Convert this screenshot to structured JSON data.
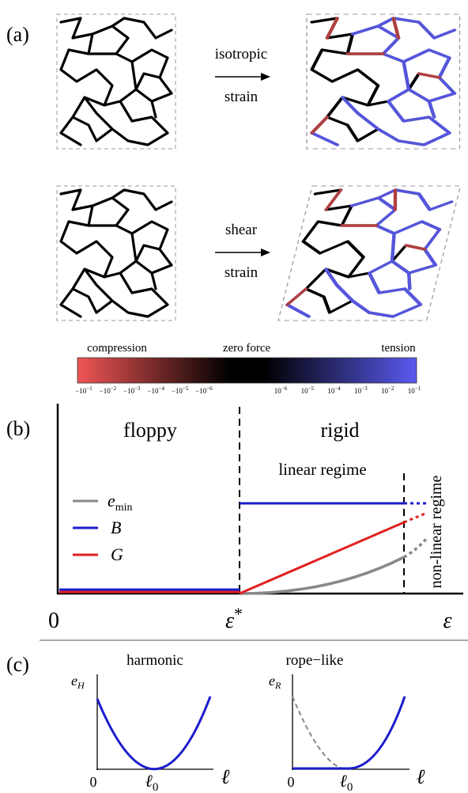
{
  "panel_a": {
    "label": "(a)",
    "row1_arrow": {
      "top": "isotropic",
      "bottom": "strain"
    },
    "row2_arrow": {
      "top": "shear",
      "bottom": "strain"
    },
    "colorbar": {
      "left_label": "compression",
      "center_label": "zero force",
      "right_label": "tension",
      "left_ticks": [
        {
          "base": "−10",
          "exp": "−1"
        },
        {
          "base": "−10",
          "exp": "−2"
        },
        {
          "base": "−10",
          "exp": "−3"
        },
        {
          "base": "−10",
          "exp": "−4"
        },
        {
          "base": "−10",
          "exp": "−5"
        },
        {
          "base": "−10",
          "exp": "−6"
        }
      ],
      "right_ticks": [
        {
          "base": "10",
          "exp": "−6"
        },
        {
          "base": "10",
          "exp": "−5"
        },
        {
          "base": "10",
          "exp": "−4"
        },
        {
          "base": "10",
          "exp": "−3"
        },
        {
          "base": "10",
          "exp": "−2"
        },
        {
          "base": "10",
          "exp": "−1"
        }
      ]
    }
  },
  "panel_b": {
    "label": "(b)",
    "floppy": "floppy",
    "rigid": "rigid",
    "linear_regime": "linear  regime",
    "nonlinear_regime": "non-linear regime",
    "legend": [
      {
        "symbol": "e",
        "subscript": "min"
      },
      {
        "symbol": "B"
      },
      {
        "symbol": "G"
      }
    ],
    "x_origin": "0",
    "x_critical": {
      "symbol": "ε",
      "superscript": "*"
    },
    "x_label": "ε"
  },
  "panel_c": {
    "label": "(c)",
    "left": {
      "title": "harmonic",
      "y_label": {
        "symbol": "e",
        "subscript": "H"
      },
      "x_origin": "0",
      "x_min": {
        "symbol": "ℓ",
        "subscript": "0"
      },
      "x_label": "ℓ"
    },
    "right": {
      "title": "rope−like",
      "y_label": {
        "symbol": "e",
        "subscript": "R"
      },
      "x_origin": "0",
      "x_min": {
        "symbol": "ℓ",
        "subscript": "0"
      },
      "x_label": "ℓ"
    }
  }
}
